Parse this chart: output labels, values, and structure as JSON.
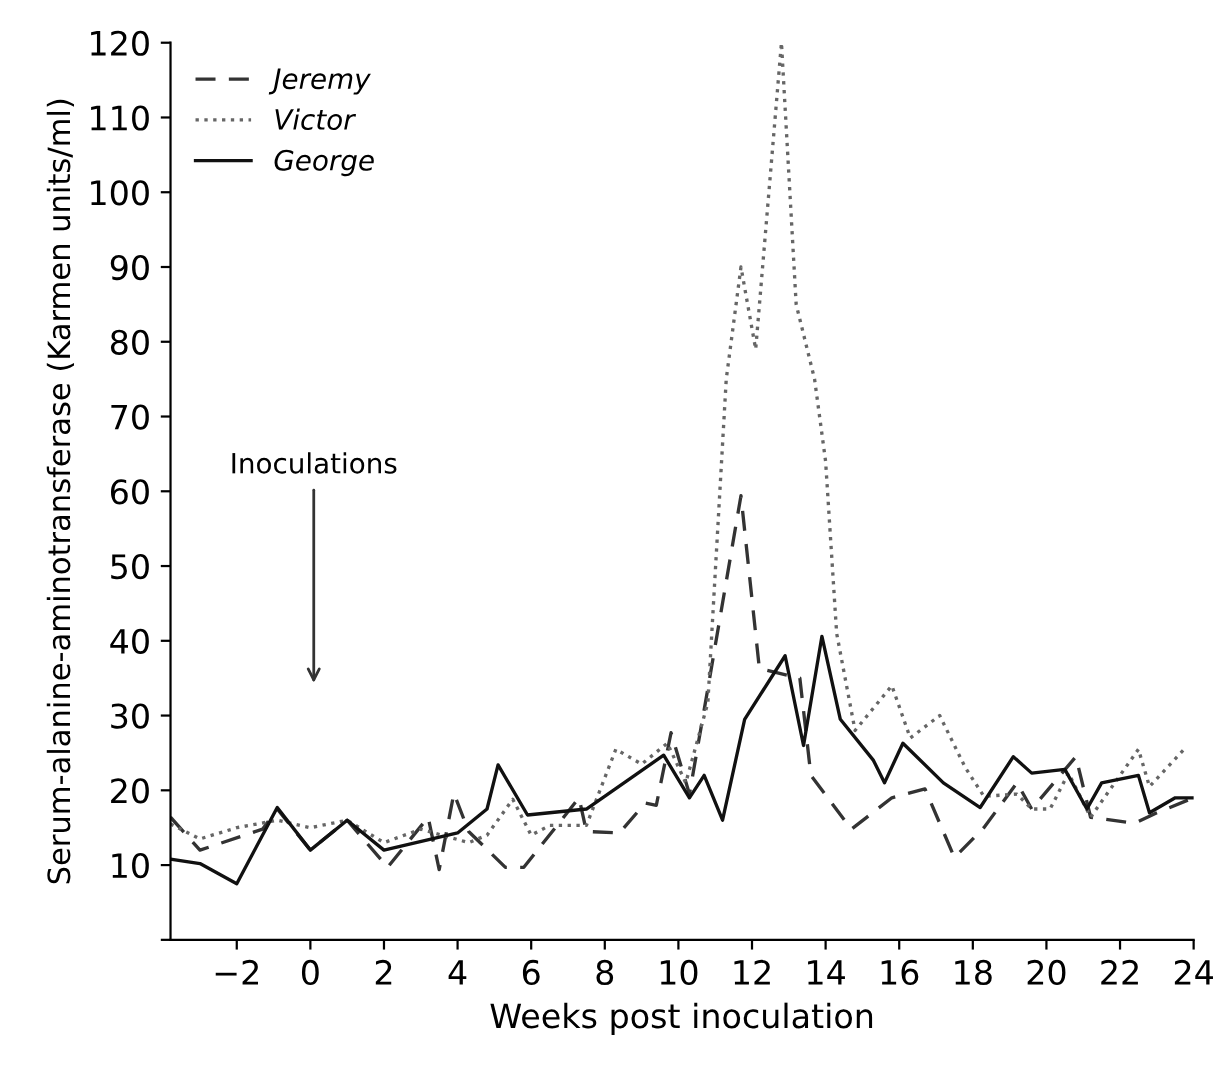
{
  "chart_data": {
    "type": "line",
    "xlabel": "Weeks post inoculation",
    "ylabel": "Serum-alanine-aminotransferase (Karmen units/ml)",
    "xlim": [
      -3.8,
      24
    ],
    "ylim": [
      0,
      120
    ],
    "xticks": [
      -2,
      0,
      2,
      4,
      6,
      8,
      10,
      12,
      14,
      16,
      18,
      20,
      22,
      24
    ],
    "yticks": [
      {
        "value": 0,
        "label": null
      },
      10,
      20,
      30,
      40,
      50,
      60,
      70,
      80,
      90,
      100,
      110,
      120
    ],
    "grid": false,
    "legend": "top left",
    "marker": "none",
    "annotations": [
      "Inoculations"
    ],
    "series": [
      {
        "name": "Jeremy",
        "color": "#333333",
        "line_style": "dashed",
        "x": [
          -3.8,
          -3,
          -1.3,
          -0.9,
          0,
          1,
          2.1,
          3.2,
          3.5,
          3.9,
          4.3,
          5.3,
          5.8,
          7.3,
          7.5,
          8.4,
          9.1,
          9.4,
          9.8,
          10.3,
          10.8,
          11.7,
          12.2,
          13.3,
          13.6,
          14.7,
          15.8,
          16.7,
          17.5,
          18.3,
          19.2,
          19.6,
          20.8,
          21.2,
          22.4,
          23.0,
          24
        ],
        "values": [
          16.4,
          12,
          14.8,
          17.5,
          12,
          16,
          9.7,
          16.4,
          9.4,
          19.6,
          14.5,
          9.7,
          9.7,
          19,
          14.5,
          14.3,
          18.3,
          18,
          27.7,
          19.5,
          33.6,
          59.4,
          36.3,
          35,
          22,
          14.8,
          19,
          20.2,
          11,
          15,
          21,
          17.5,
          24.5,
          16.4,
          15.6,
          17,
          19
        ]
      },
      {
        "name": "Victor",
        "color": "#666666",
        "line_style": "dotted",
        "x": [
          -3.8,
          -3,
          -2,
          -0.9,
          0,
          1,
          2,
          3,
          4.3,
          4.8,
          5.5,
          6,
          6.5,
          7.5,
          8.3,
          9,
          9.7,
          10.2,
          10.8,
          11.3,
          11.7,
          12.1,
          12.8,
          13.2,
          13.7,
          14.0,
          14.3,
          14.8,
          15.8,
          16.3,
          17.1,
          17.8,
          18.3,
          19.2,
          19.6,
          20.1,
          20.6,
          21.2,
          22.5,
          22.8,
          23.8
        ],
        "values": [
          15.5,
          13.5,
          15,
          16,
          15,
          16,
          13,
          14.8,
          13,
          14,
          18.8,
          14,
          15.3,
          15.3,
          25.5,
          23.5,
          26.3,
          21,
          31.7,
          75,
          90,
          79,
          120,
          85,
          75,
          64,
          41,
          28,
          34,
          27,
          30,
          23,
          19.2,
          19.5,
          17.5,
          17.5,
          22.3,
          16.4,
          25.5,
          20.5,
          25.8
        ]
      },
      {
        "name": "George",
        "color": "#111111",
        "line_style": "solid",
        "x": [
          -3.8,
          -3,
          -2,
          -0.9,
          0,
          1,
          2,
          4,
          4.8,
          5.1,
          5.9,
          7.5,
          9.6,
          10.3,
          10.7,
          11.2,
          11.8,
          12.9,
          13.4,
          13.9,
          14.4,
          15.3,
          15.6,
          16.1,
          17.2,
          18.2,
          19.1,
          19.6,
          20.5,
          21.1,
          21.5,
          22.5,
          22.8,
          23.5,
          24
        ],
        "values": [
          10.8,
          10.2,
          7.5,
          17.7,
          12,
          16,
          12,
          14.3,
          17.5,
          23.4,
          16.7,
          17.5,
          24.7,
          19,
          22,
          16,
          29.5,
          38,
          26,
          40.6,
          29.5,
          24,
          21,
          26.3,
          21,
          17.7,
          24.5,
          22.3,
          22.8,
          17.5,
          21,
          22,
          17,
          19,
          19
        ]
      }
    ]
  }
}
